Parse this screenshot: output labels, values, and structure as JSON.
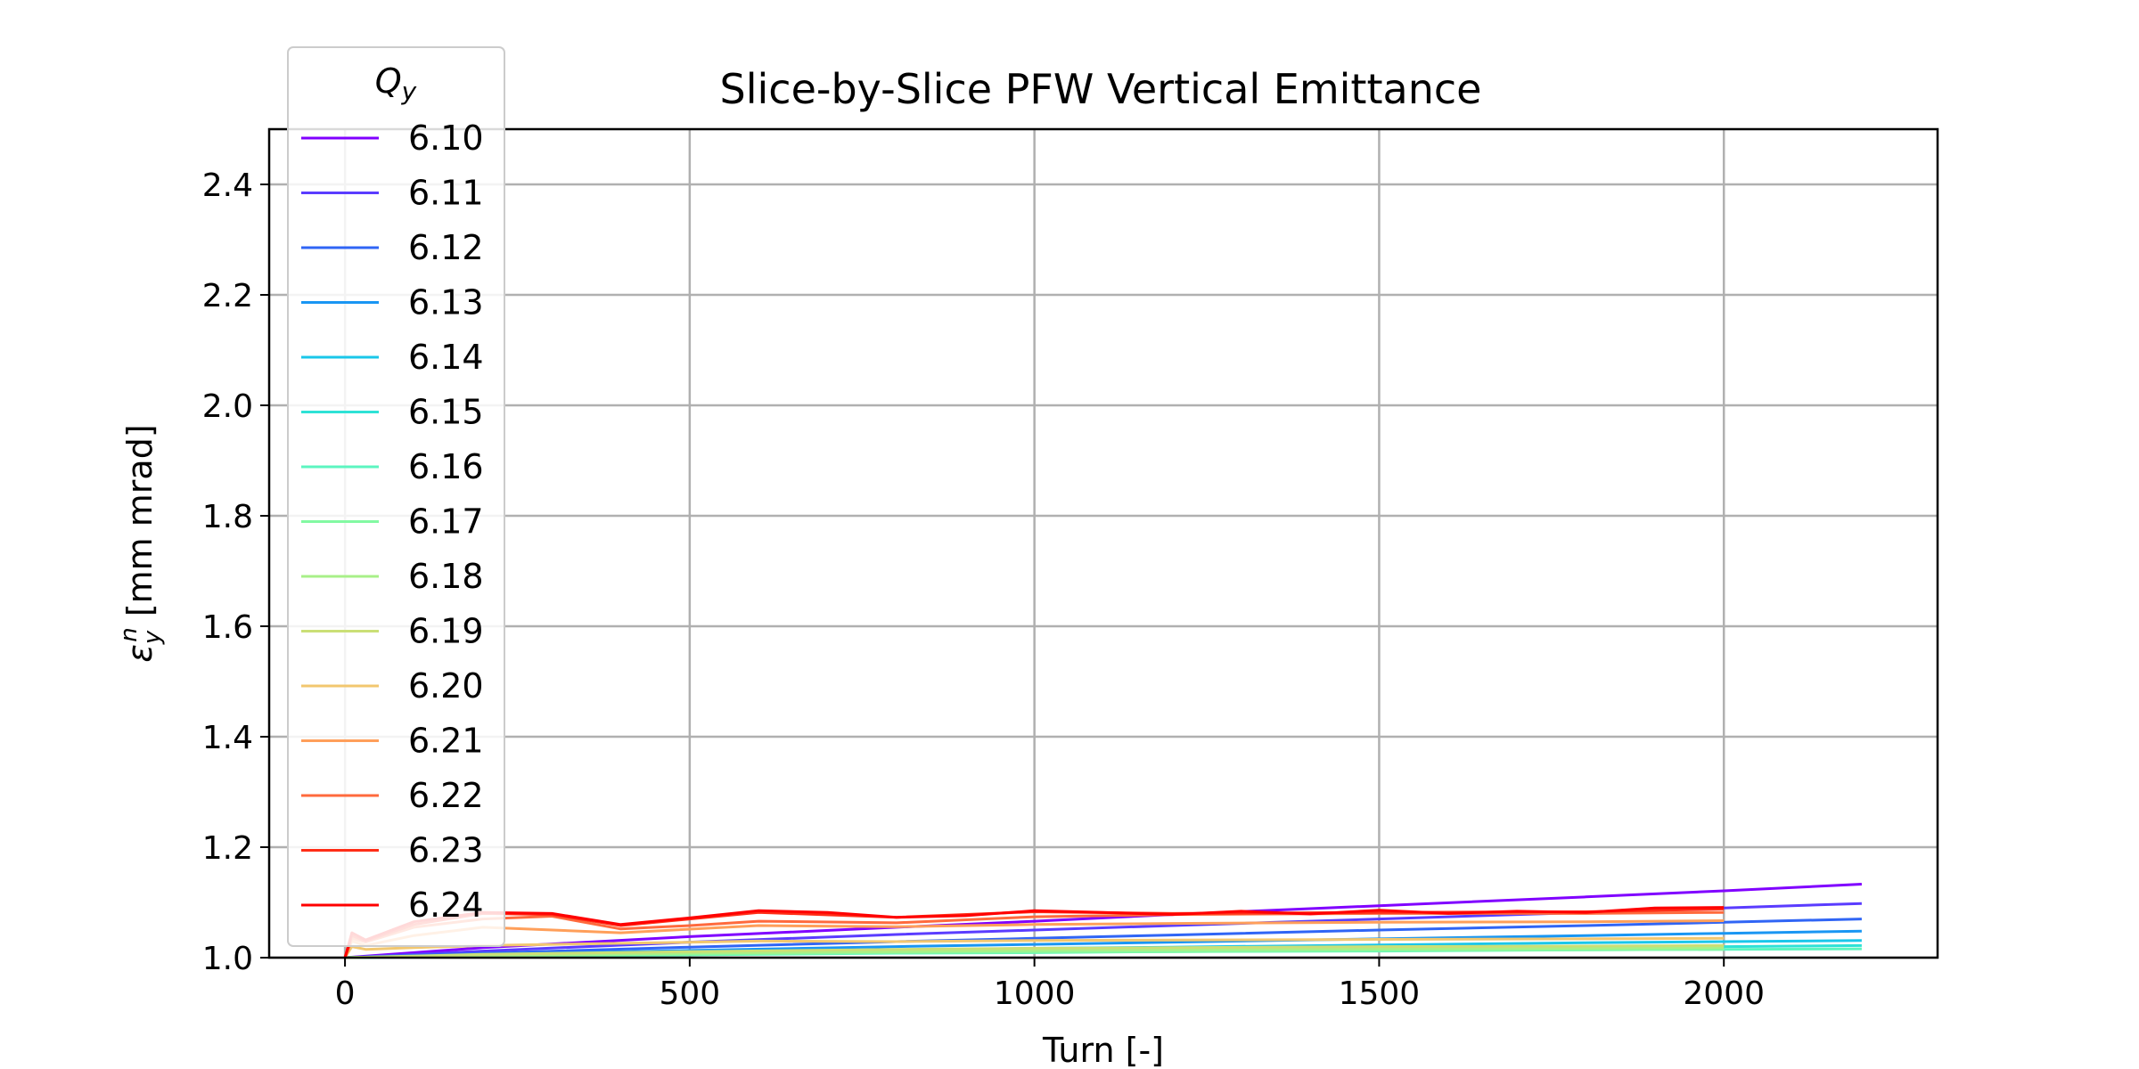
{
  "chart_data": {
    "type": "line",
    "title": "Slice-by-Slice PFW Vertical Emittance",
    "xlabel": "Turn [-]",
    "ylabel_parts": {
      "epsilon": "ε",
      "sub": "y",
      "sup": "n",
      "unit": " [mm mrad]"
    },
    "xlim": [
      -110,
      2310
    ],
    "ylim": [
      1.0,
      2.5
    ],
    "xticks": [
      0,
      500,
      1000,
      1500,
      2000
    ],
    "yticks": [
      1.0,
      1.2,
      1.4,
      1.6,
      1.8,
      2.0,
      2.2,
      2.4
    ],
    "grid": true,
    "legend": {
      "title_base": "Q",
      "title_sub": "y",
      "location": "upper-left"
    },
    "series": [
      {
        "name": "6.10",
        "color": "#8000ff",
        "x": [
          0,
          200,
          500,
          800,
          1000,
          1200,
          1500,
          1800,
          2000,
          2200
        ],
        "y": [
          1.0,
          1.018,
          1.038,
          1.055,
          1.066,
          1.078,
          1.094,
          1.11,
          1.121,
          1.133
        ]
      },
      {
        "name": "6.11",
        "color": "#5a3cff",
        "x": [
          0,
          200,
          500,
          800,
          1000,
          1200,
          1500,
          1800,
          2000,
          2200
        ],
        "y": [
          1.0,
          1.012,
          1.028,
          1.042,
          1.05,
          1.058,
          1.07,
          1.082,
          1.09,
          1.098
        ]
      },
      {
        "name": "6.12",
        "color": "#3065f5",
        "x": [
          0,
          200,
          500,
          800,
          1000,
          1200,
          1500,
          1800,
          2000,
          2200
        ],
        "y": [
          1.0,
          1.008,
          1.019,
          1.029,
          1.035,
          1.041,
          1.05,
          1.058,
          1.064,
          1.07
        ]
      },
      {
        "name": "6.13",
        "color": "#1996f3",
        "x": [
          0,
          200,
          500,
          800,
          1000,
          1200,
          1500,
          1800,
          2000,
          2200
        ],
        "y": [
          1.0,
          1.006,
          1.013,
          1.02,
          1.024,
          1.028,
          1.034,
          1.04,
          1.044,
          1.048
        ]
      },
      {
        "name": "6.14",
        "color": "#1ac7ea",
        "x": [
          0,
          200,
          500,
          800,
          1000,
          1200,
          1500,
          1800,
          2000,
          2200
        ],
        "y": [
          1.0,
          1.004,
          1.009,
          1.014,
          1.017,
          1.019,
          1.023,
          1.027,
          1.029,
          1.031
        ]
      },
      {
        "name": "6.15",
        "color": "#2ee2d6",
        "x": [
          0,
          200,
          500,
          800,
          1000,
          1200,
          1500,
          1800,
          2000,
          2200
        ],
        "y": [
          1.0,
          1.003,
          1.007,
          1.01,
          1.012,
          1.014,
          1.016,
          1.019,
          1.02,
          1.022
        ]
      },
      {
        "name": "6.16",
        "color": "#5cf5c0",
        "x": [
          0,
          200,
          500,
          800,
          1000,
          1200,
          1500,
          1800,
          2000,
          2200
        ],
        "y": [
          1.0,
          1.002,
          1.005,
          1.008,
          1.009,
          1.011,
          1.012,
          1.014,
          1.015,
          1.016
        ]
      },
      {
        "name": "6.17",
        "color": "#82f9a2",
        "x": [
          0,
          200,
          500,
          800,
          1000,
          1200,
          1500,
          1800,
          2000
        ],
        "y": [
          1.0,
          1.003,
          1.006,
          1.009,
          1.01,
          1.011,
          1.013,
          1.014,
          1.015
        ]
      },
      {
        "name": "6.18",
        "color": "#a8f088",
        "x": [
          0,
          200,
          500,
          800,
          1000,
          1200,
          1500,
          1800,
          2000
        ],
        "y": [
          1.0,
          1.004,
          1.008,
          1.011,
          1.013,
          1.014,
          1.016,
          1.017,
          1.018
        ]
      },
      {
        "name": "6.19",
        "color": "#cadf76",
        "x": [
          0,
          200,
          500,
          800,
          1000,
          1200,
          1500,
          1800,
          2000
        ],
        "y": [
          1.0,
          1.006,
          1.011,
          1.015,
          1.017,
          1.018,
          1.02,
          1.021,
          1.022
        ]
      },
      {
        "name": "6.20",
        "color": "#f2c76f",
        "x": [
          0,
          10,
          30,
          100,
          200,
          400,
          600,
          800,
          1000,
          1200,
          1500,
          1800,
          2000
        ],
        "y": [
          1.0,
          1.02,
          1.015,
          1.018,
          1.022,
          1.026,
          1.03,
          1.029,
          1.031,
          1.032,
          1.033,
          1.034,
          1.035
        ]
      },
      {
        "name": "6.21",
        "color": "#ff9f5a",
        "x": [
          0,
          10,
          30,
          100,
          200,
          400,
          600,
          800,
          1000,
          1200,
          1500,
          1800,
          2000
        ],
        "y": [
          1.0,
          1.03,
          1.022,
          1.04,
          1.055,
          1.045,
          1.058,
          1.056,
          1.06,
          1.062,
          1.064,
          1.065,
          1.067
        ]
      },
      {
        "name": "6.22",
        "color": "#ff6a3d",
        "x": [
          0,
          10,
          30,
          100,
          200,
          300,
          400,
          500,
          600,
          800,
          1000,
          1200,
          1500,
          1800,
          2000
        ],
        "y": [
          1.0,
          1.035,
          1.028,
          1.055,
          1.07,
          1.075,
          1.052,
          1.058,
          1.066,
          1.063,
          1.074,
          1.078,
          1.08,
          1.08,
          1.082
        ]
      },
      {
        "name": "6.23",
        "color": "#ff2d17",
        "x": [
          0,
          10,
          30,
          100,
          200,
          300,
          400,
          500,
          600,
          800,
          1000,
          1200,
          1500,
          1800,
          2000
        ],
        "y": [
          1.0,
          1.04,
          1.03,
          1.06,
          1.08,
          1.078,
          1.058,
          1.07,
          1.082,
          1.073,
          1.083,
          1.08,
          1.082,
          1.083,
          1.088
        ]
      },
      {
        "name": "6.24",
        "color": "#ff0000",
        "x": [
          0,
          10,
          30,
          100,
          200,
          300,
          400,
          500,
          600,
          700,
          800,
          900,
          1000,
          1100,
          1200,
          1300,
          1400,
          1500,
          1600,
          1700,
          1800,
          1900,
          2000
        ],
        "y": [
          1.0,
          1.045,
          1.032,
          1.065,
          1.082,
          1.08,
          1.06,
          1.072,
          1.085,
          1.082,
          1.073,
          1.076,
          1.085,
          1.082,
          1.078,
          1.084,
          1.079,
          1.086,
          1.08,
          1.084,
          1.082,
          1.09,
          1.091
        ]
      }
    ]
  }
}
